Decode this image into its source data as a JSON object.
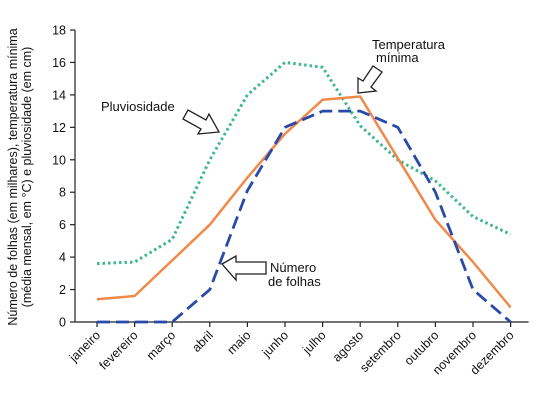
{
  "chart_data": {
    "type": "line",
    "categories": [
      "janeiro",
      "fevereiro",
      "março",
      "abril",
      "maio",
      "junho",
      "julho",
      "agosto",
      "setembro",
      "outubro",
      "novembro",
      "dezembro"
    ],
    "ylabel_line1": "Número de folhas (em milhares), temperatura mínima",
    "ylabel_line2": "(média mensal, em °C) e pluviosidade (em cm)",
    "ylim": [
      0,
      18
    ],
    "yticks": [
      0,
      2,
      4,
      6,
      8,
      10,
      12,
      14,
      16,
      18
    ],
    "grid": false,
    "series": [
      {
        "key": "pluviosidade",
        "values": [
          3.6,
          3.7,
          5.1,
          10.0,
          14.0,
          16.0,
          15.7,
          12.1,
          10.0,
          8.7,
          6.5,
          5.4
        ],
        "color": "#3cb88a",
        "style": "dotted"
      },
      {
        "key": "temperatura",
        "values": [
          1.4,
          1.6,
          3.8,
          6.0,
          8.9,
          11.6,
          13.7,
          13.9,
          10.1,
          6.3,
          3.7,
          0.9
        ],
        "color": "#f0894a",
        "style": "solid"
      },
      {
        "key": "folhas",
        "values": [
          0.0,
          0.0,
          0.0,
          2.0,
          8.1,
          12.0,
          13.0,
          13.0,
          12.0,
          8.0,
          2.0,
          0.0
        ],
        "color": "#2a4aa8",
        "style": "dashed"
      }
    ],
    "annotations": {
      "pluviosidade": "Pluviosidade",
      "temperatura_line1": "Temperatura",
      "temperatura_line2": "mínima",
      "folhas_line1": "Número",
      "folhas_line2": "de folhas"
    },
    "colors": {
      "axis": "#222222",
      "arrow_fill": "#ffffff",
      "arrow_stroke": "#222222"
    }
  }
}
